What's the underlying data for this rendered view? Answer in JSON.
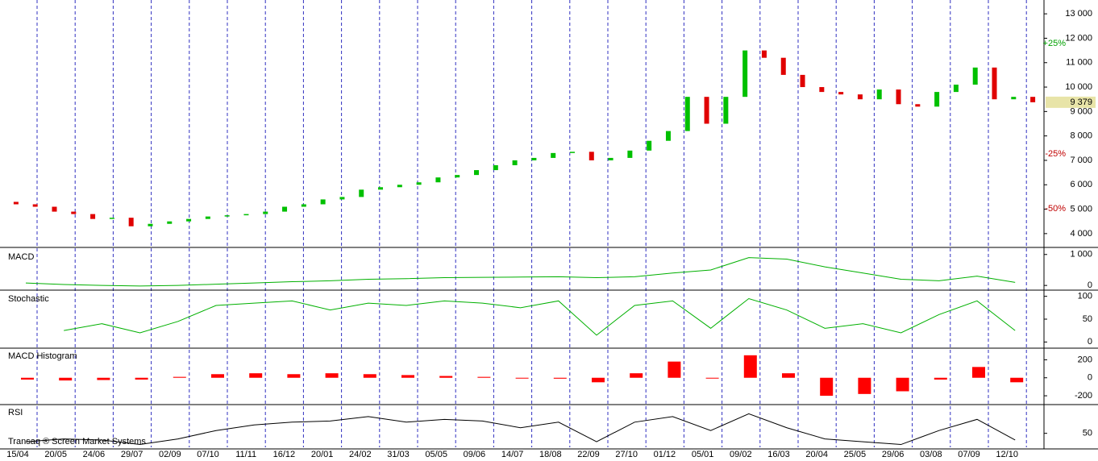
{
  "chart_data": [
    {
      "type": "candlestick",
      "categories": [
        "15/04",
        "20/05",
        "24/06",
        "29/07",
        "02/09",
        "07/10",
        "11/11",
        "16/12",
        "20/01",
        "24/02",
        "31/03",
        "05/05",
        "09/06",
        "14/07",
        "18/08",
        "22/09",
        "27/10",
        "01/12",
        "05/01",
        "09/02",
        "16/03",
        "20/04",
        "25/05",
        "29/06",
        "03/08",
        "07/09",
        "12/10"
      ],
      "open": [
        5300,
        5200,
        5100,
        4900,
        4800,
        4600,
        4650,
        4300,
        4400,
        4500,
        4600,
        4700,
        4750,
        4800,
        4900,
        5100,
        5200,
        5400,
        5500,
        5800,
        5900,
        6000,
        6100,
        6300,
        6400,
        6600,
        6800,
        7000,
        7100,
        7300,
        7350,
        7000,
        7100,
        7400,
        7800,
        8200,
        9600,
        8500,
        9600,
        11500,
        11200,
        10500,
        10000,
        9800,
        9700,
        9500,
        9900,
        9300,
        9200,
        9800,
        10100,
        10800,
        9500,
        9600
      ],
      "close": [
        5200,
        5100,
        4900,
        4800,
        4600,
        4650,
        4300,
        4400,
        4500,
        4600,
        4700,
        4750,
        4800,
        4900,
        5100,
        5200,
        5400,
        5500,
        5800,
        5900,
        6000,
        6100,
        6300,
        6400,
        6600,
        6800,
        7000,
        7100,
        7300,
        7350,
        7000,
        7100,
        7400,
        7800,
        8200,
        9600,
        8500,
        9600,
        11500,
        11200,
        10500,
        10000,
        9800,
        9700,
        9500,
        9900,
        9300,
        9200,
        9800,
        10100,
        10800,
        9500,
        9600,
        9379
      ],
      "value_labels": [
        null,
        null,
        null,
        null,
        null,
        null,
        null,
        null,
        null,
        null,
        null,
        null,
        null,
        null,
        null,
        null,
        null,
        null,
        null,
        null,
        null,
        null,
        null,
        null,
        null,
        null,
        null,
        null,
        null,
        null,
        null,
        null,
        null,
        null,
        null,
        null,
        null,
        null,
        null,
        null,
        null,
        null,
        null,
        null,
        null,
        null,
        null,
        null,
        null,
        null,
        null,
        null,
        null,
        "9 379"
      ],
      "up_color": "#00c000",
      "down_color": "#e00000",
      "ylim": [
        3500,
        13500
      ],
      "yticks": [
        {
          "value": 4000,
          "label": "4 000"
        },
        {
          "value": 5000,
          "label": "5 000"
        },
        {
          "value": 6000,
          "label": "6 000"
        },
        {
          "value": 7000,
          "label": "7 000"
        },
        {
          "value": 8000,
          "label": "8 000"
        },
        {
          "value": 9000,
          "label": "9 000"
        },
        {
          "value": 10000,
          "label": "10 000"
        },
        {
          "value": 11000,
          "label": "11 000"
        },
        {
          "value": 12000,
          "label": "12 000"
        },
        {
          "value": 13000,
          "label": "13 000"
        }
      ],
      "annotations": [
        "+25%",
        "-25%",
        "-50%"
      ]
    },
    {
      "type": "line",
      "title": "MACD",
      "color": "#00b000",
      "values": [
        80,
        30,
        0,
        -20,
        0,
        40,
        80,
        120,
        150,
        200,
        220,
        250,
        260,
        270,
        280,
        250,
        280,
        400,
        500,
        900,
        850,
        600,
        400,
        200,
        150,
        300,
        100
      ],
      "ylim": [
        -100,
        1150
      ],
      "yticks": [
        0,
        {
          "value": 1000,
          "label": "1 000"
        }
      ]
    },
    {
      "type": "line",
      "title": "Stochastic",
      "color": "#00b000",
      "values": [
        null,
        25,
        40,
        20,
        45,
        80,
        85,
        90,
        70,
        85,
        80,
        90,
        85,
        75,
        90,
        15,
        80,
        90,
        30,
        95,
        70,
        30,
        40,
        20,
        60,
        90,
        25
      ],
      "ylim": [
        -10,
        110
      ],
      "yticks": [
        0,
        50,
        100
      ]
    },
    {
      "type": "bar",
      "title": "MACD Histogram",
      "color": "#ff0000",
      "values": [
        -20,
        -30,
        -25,
        -20,
        10,
        40,
        50,
        40,
        50,
        40,
        30,
        20,
        10,
        0,
        -10,
        -50,
        50,
        180,
        0,
        250,
        50,
        -200,
        -180,
        -150,
        -20,
        120,
        -50
      ],
      "ylim": [
        -280,
        320
      ],
      "yticks": [
        -200,
        0,
        200
      ]
    },
    {
      "type": "line",
      "title": "RSI",
      "color": "#000000",
      "values": [
        35,
        40,
        38,
        30,
        40,
        55,
        65,
        70,
        72,
        80,
        70,
        75,
        72,
        60,
        70,
        35,
        70,
        80,
        55,
        85,
        60,
        40,
        35,
        30,
        55,
        75,
        38
      ],
      "ylim": [
        25,
        100
      ],
      "yticks": [
        50
      ],
      "footer": "Transaq ® Screen Market Systems"
    }
  ]
}
